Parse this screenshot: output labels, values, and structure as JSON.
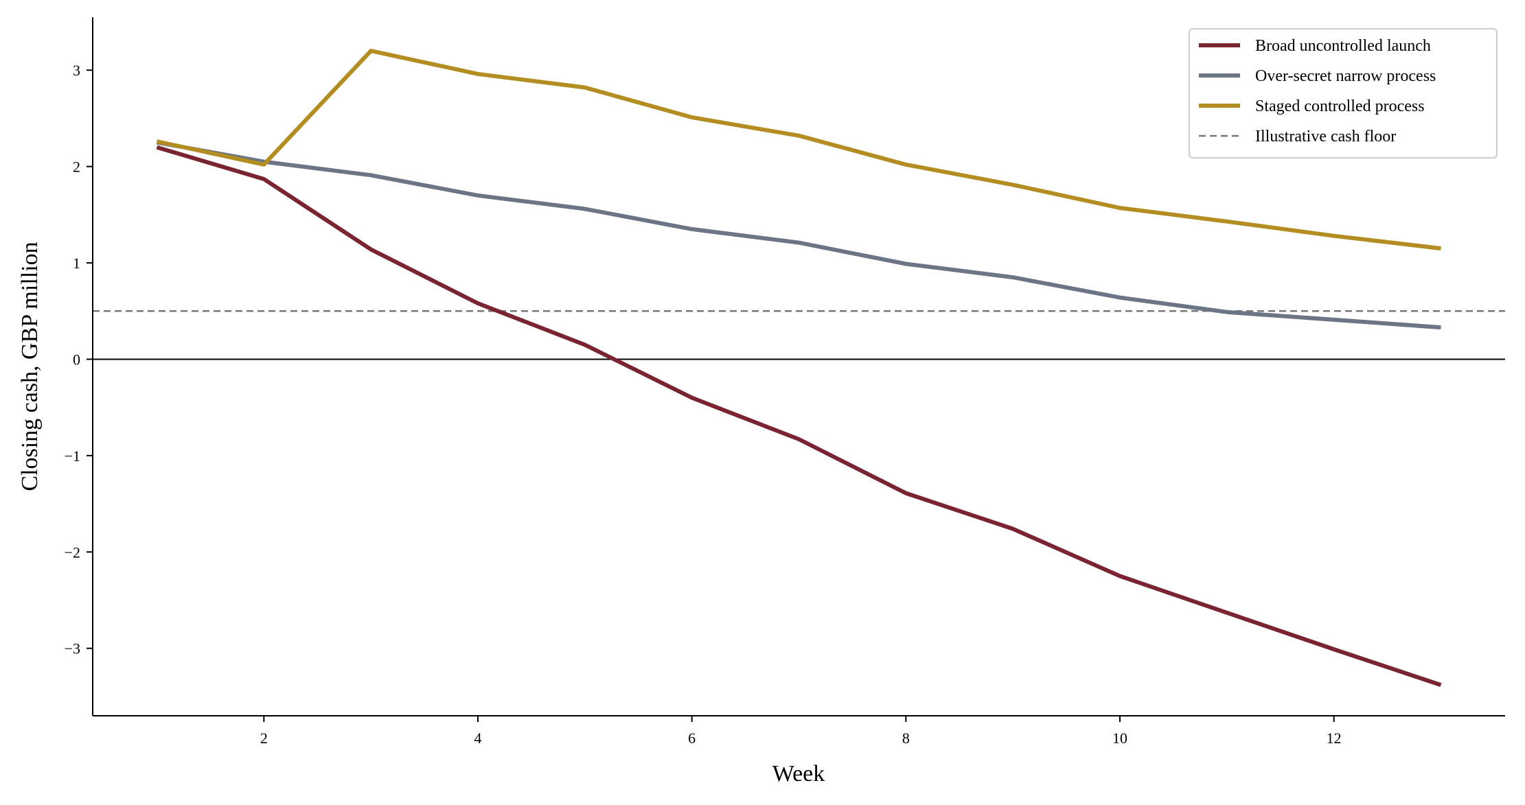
{
  "chart_data": {
    "type": "line",
    "title": "",
    "xlabel": "Week",
    "ylabel": "Closing cash, GBP million",
    "xlim": [
      0.4,
      13.6
    ],
    "ylim": [
      -3.7,
      3.55
    ],
    "xticks": [
      2,
      4,
      6,
      8,
      10,
      12
    ],
    "xtick_labels": [
      "2",
      "4",
      "6",
      "8",
      "10",
      "12"
    ],
    "yticks": [
      -3,
      -2,
      -1,
      0,
      1,
      2,
      3
    ],
    "ytick_labels": [
      "−3",
      "−2",
      "−1",
      "0",
      "1",
      "2",
      "3"
    ],
    "grid": false,
    "legend_position": "top-right",
    "x": [
      1,
      2,
      3,
      4,
      5,
      6,
      7,
      8,
      9,
      10,
      11,
      12,
      13
    ],
    "series": [
      {
        "name": "Broad uncontrolled launch",
        "color": "#7a2331",
        "values": [
          2.2,
          1.87,
          1.14,
          0.58,
          0.15,
          -0.4,
          -0.83,
          -1.39,
          -1.76,
          -2.25,
          -2.63,
          -3.01,
          -3.38
        ]
      },
      {
        "name": "Over-secret narrow process",
        "color": "#6b7585",
        "values": [
          2.25,
          2.05,
          1.91,
          1.7,
          1.56,
          1.35,
          1.21,
          0.99,
          0.85,
          0.64,
          0.49,
          0.41,
          0.33
        ]
      },
      {
        "name": "Staged controlled process",
        "color": "#b38d22",
        "values": [
          2.26,
          2.02,
          3.2,
          2.96,
          2.82,
          2.51,
          2.32,
          2.02,
          1.81,
          1.57,
          1.43,
          1.28,
          1.15
        ]
      }
    ],
    "reference_lines": [
      {
        "name": "Illustrative cash floor",
        "y": 0.5,
        "color": "#777777",
        "style": "dashed"
      },
      {
        "name": "",
        "y": 0,
        "color": "#000000",
        "style": "solid"
      }
    ]
  }
}
